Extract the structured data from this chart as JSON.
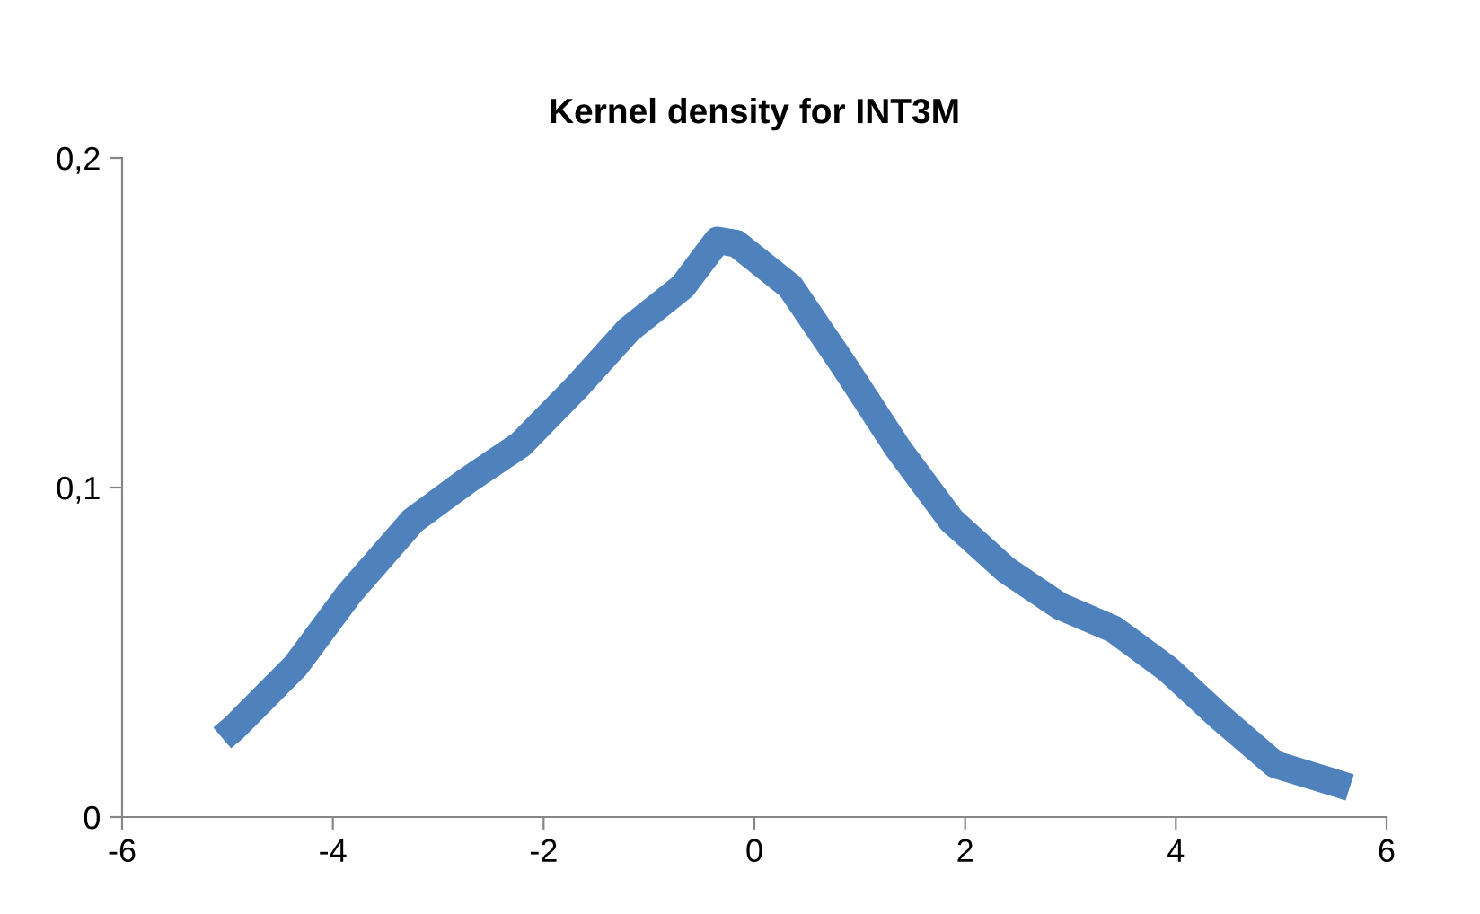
{
  "chart_data": {
    "type": "line",
    "title": "Kernel density for INT3M",
    "x": [
      -5.05,
      -4.94,
      -4.35,
      -3.84,
      -3.24,
      -2.73,
      -2.22,
      -1.7,
      -1.19,
      -0.68,
      -0.35,
      -0.17,
      0.34,
      0.85,
      1.36,
      1.87,
      2.39,
      2.9,
      3.41,
      3.92,
      4.43,
      4.94,
      5.45,
      5.65
    ],
    "series": [
      {
        "color": "#4f81bd",
        "values": [
          0.024,
          0.027,
          0.046,
          0.068,
          0.09,
          0.102,
          0.113,
          0.13,
          0.148,
          0.161,
          0.175,
          0.174,
          0.161,
          0.137,
          0.112,
          0.09,
          0.075,
          0.064,
          0.057,
          0.045,
          0.03,
          0.016,
          0.011,
          0.009
        ]
      }
    ],
    "xlim": [
      -6,
      6
    ],
    "xticks": [
      {
        "value": -6,
        "label": "-6"
      },
      {
        "value": -4,
        "label": "-4"
      },
      {
        "value": -2,
        "label": "-2"
      },
      0,
      2,
      4,
      6
    ],
    "ylim": [
      0,
      0.2
    ],
    "yticks": [
      0,
      {
        "value": 0.1,
        "label": "0,1"
      },
      {
        "value": 0.2,
        "label": "0,2"
      }
    ],
    "marker": "none",
    "line_style": "solid"
  }
}
